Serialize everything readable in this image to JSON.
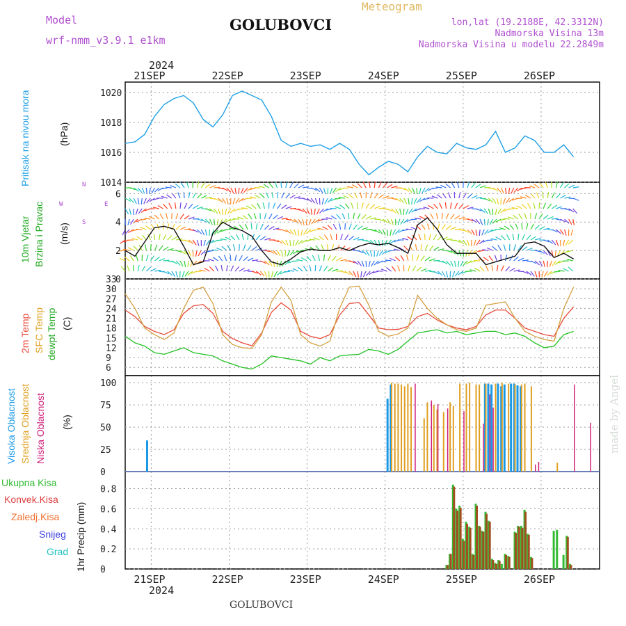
{
  "header": {
    "model_label": "Model",
    "model_name": "wrf-nmm_v3.9.1 e1km",
    "title": "GOLUBOVCI",
    "meteogram": "Meteogram",
    "coords": "lon,lat (19.2188E, 42.3312N)",
    "elevation": "Nadmorska Visina 13m",
    "model_elevation": "Nadmorska Visina u modelu 22.2849m",
    "year_top": "2024",
    "year_bottom": "2024",
    "footer_title": "GOLUBOVCI",
    "credit": "made by Angel"
  },
  "day_labels": [
    "21SEP",
    "22SEP",
    "23SEP",
    "24SEP",
    "25SEP",
    "26SEP"
  ],
  "panel_labels": {
    "pressure": [
      "Pritisak na nivou mora"
    ],
    "pressure_unit": "(hPa)",
    "wind": [
      "10m Vjetar",
      "Brzina i Pravac"
    ],
    "wind_unit": "(m/s)",
    "wind_compass": {
      "n": "N",
      "s": "S",
      "w": "W",
      "e": "E"
    },
    "temp": [
      "2m Temp",
      "SFC Temp",
      "dewpt Temp"
    ],
    "temp_unit": "(C)",
    "cloud": [
      "Visoka Oblacnost",
      "Srednja Oblacnost",
      "Niska Oblacnost"
    ],
    "cloud_unit": "(%)",
    "precip": [
      "Ukupna Kisa",
      "Konvek.Kisa",
      "Zaledj.Kisa",
      "Snijeg",
      "Grad"
    ],
    "precip_unit": "1hr Precip (mm)"
  },
  "colors": {
    "pressure": "#1ea0e6",
    "temp2m": "#e84a3a",
    "sfc": "#d4a040",
    "dewpt": "#22c022",
    "high_cloud": "#1a9ae6",
    "mid_cloud": "#e0a020",
    "low_cloud": "#d0207a",
    "total_precip": "#33bb33",
    "conv_precip": "#a05020",
    "freezing": "#f07030",
    "snow": "#4040e0",
    "hail": "#20c0c0",
    "header_purple": "#b050d0",
    "header_gold": "#e0b860"
  },
  "chart_data": [
    {
      "type": "line",
      "title": "Pritisak na nivou mora",
      "ylabel": "(hPa)",
      "ylim": [
        1014,
        1020.7
      ],
      "yticks": [
        1014,
        1016,
        1018,
        1020
      ],
      "x_hours": [
        0,
        3,
        6,
        9,
        12,
        15,
        18,
        21,
        24,
        27,
        30,
        33,
        36,
        39,
        42,
        45,
        48,
        51,
        54,
        57,
        60,
        63,
        66,
        69,
        72,
        75,
        78,
        81,
        84,
        87,
        90,
        93,
        96,
        99,
        102,
        105,
        108,
        111,
        114,
        117,
        120,
        123,
        126,
        129,
        132,
        135,
        138
      ],
      "values": [
        1016.6,
        1016.7,
        1017.2,
        1018.4,
        1019.2,
        1019.6,
        1019.8,
        1019.3,
        1018.2,
        1017.7,
        1018.5,
        1019.8,
        1020.1,
        1019.8,
        1019.5,
        1018.4,
        1016.8,
        1016.4,
        1016.6,
        1016.4,
        1016.5,
        1016.2,
        1016.6,
        1016.2,
        1015.2,
        1014.5,
        1015.0,
        1015.4,
        1015.2,
        1014.7,
        1015.7,
        1016.4,
        1016.0,
        1015.9,
        1016.6,
        1016.3,
        1016.2,
        1016.5,
        1017.4,
        1016.0,
        1016.3,
        1017.1,
        1016.8,
        1016.0,
        1016.0,
        1016.5,
        1015.7
      ]
    },
    {
      "type": "line",
      "title": "10m Vjetar Brzina i Pravac",
      "ylabel": "(m/s)",
      "ylim": [
        0,
        6.8
      ],
      "yticks": [
        0,
        2,
        4,
        6
      ],
      "x_hours": [
        0,
        3,
        6,
        9,
        12,
        15,
        18,
        21,
        24,
        27,
        30,
        33,
        36,
        39,
        42,
        45,
        48,
        51,
        54,
        57,
        60,
        63,
        66,
        69,
        72,
        75,
        78,
        81,
        84,
        87,
        90,
        93,
        96,
        99,
        102,
        105,
        108,
        111,
        114,
        117,
        120,
        123,
        126,
        129,
        132,
        135,
        138
      ],
      "values": [
        2.0,
        1.6,
        2.6,
        3.6,
        3.7,
        3.5,
        2.3,
        1.0,
        1.2,
        3.2,
        4.0,
        3.6,
        3.4,
        3.0,
        2.0,
        1.2,
        1.0,
        1.4,
        1.9,
        2.1,
        2.0,
        2.0,
        2.2,
        2.0,
        2.3,
        2.5,
        2.4,
        2.5,
        2.2,
        1.8,
        3.8,
        4.3,
        3.5,
        2.4,
        1.8,
        1.8,
        1.8,
        1.0,
        1.2,
        1.4,
        1.6,
        2.5,
        2.6,
        2.3,
        1.5,
        1.8,
        1.4
      ]
    },
    {
      "type": "line",
      "title": "2m Temp / SFC Temp / dewpt Temp",
      "ylabel": "(C)",
      "ylim": [
        3.5,
        33
      ],
      "yticks": [
        6,
        9,
        12,
        15,
        18,
        21,
        24,
        27,
        30,
        33
      ],
      "x_hours": [
        0,
        3,
        6,
        9,
        12,
        15,
        18,
        21,
        24,
        27,
        30,
        33,
        36,
        39,
        42,
        45,
        48,
        51,
        54,
        57,
        60,
        63,
        66,
        69,
        72,
        75,
        78,
        81,
        84,
        87,
        90,
        93,
        96,
        99,
        102,
        105,
        108,
        111,
        114,
        117,
        120,
        123,
        126,
        129,
        132,
        135,
        138
      ],
      "series": [
        {
          "name": "2m Temp",
          "values": [
            23.5,
            21.5,
            18.5,
            17.0,
            16.0,
            17.5,
            22.5,
            24.8,
            25.2,
            22.5,
            17.0,
            14.8,
            13.5,
            12.6,
            16.5,
            22.8,
            25.7,
            23.5,
            17.0,
            15.5,
            14.8,
            16.0,
            22.0,
            25.5,
            25.8,
            22.0,
            18.0,
            17.5,
            17.6,
            18.5,
            21.5,
            22.5,
            20.5,
            19.0,
            18.0,
            17.5,
            18.5,
            22.0,
            23.5,
            23.5,
            21.0,
            18.0,
            17.0,
            16.0,
            15.5,
            21.0,
            24.5
          ]
        },
        {
          "name": "SFC Temp",
          "values": [
            28.5,
            24.0,
            18.0,
            16.0,
            14.5,
            16.5,
            24.0,
            29.5,
            30.5,
            25.5,
            16.0,
            13.0,
            12.0,
            11.8,
            16.0,
            26.0,
            30.5,
            26.5,
            16.0,
            13.5,
            12.5,
            14.0,
            24.0,
            30.5,
            30.8,
            25.0,
            17.0,
            15.5,
            16.2,
            18.0,
            28.0,
            24.0,
            21.0,
            19.0,
            17.5,
            17.0,
            18.0,
            25.0,
            25.5,
            26.0,
            21.0,
            17.0,
            15.5,
            14.5,
            14.0,
            24.0,
            30.5
          ]
        },
        {
          "name": "dewpt Temp",
          "values": [
            15.5,
            13.5,
            12.5,
            10.5,
            10.0,
            11.0,
            12.0,
            10.5,
            10.0,
            9.5,
            8.0,
            7.0,
            6.0,
            5.5,
            7.0,
            9.5,
            9.0,
            8.5,
            8.0,
            7.0,
            9.0,
            8.0,
            9.5,
            9.8,
            10.0,
            11.5,
            11.0,
            10.0,
            11.5,
            14.0,
            16.5,
            17.0,
            17.5,
            16.5,
            17.0,
            16.0,
            16.5,
            17.0,
            17.0,
            16.0,
            16.5,
            15.5,
            13.5,
            12.0,
            12.5,
            16.0,
            17.0
          ]
        }
      ]
    },
    {
      "type": "bar",
      "title": "Visoka / Srednja / Niska Oblacnost",
      "ylabel": "(%)",
      "ylim": [
        0,
        100
      ],
      "yticks": [
        0,
        25,
        50,
        75,
        100
      ],
      "series": [
        {
          "name": "Visoka Oblacnost",
          "bars": [
            [
              7,
              35
            ],
            [
              81,
              82
            ],
            [
              82,
              98
            ],
            [
              111,
              99
            ],
            [
              112,
              99
            ],
            [
              113,
              98
            ],
            [
              115,
              99
            ],
            [
              116,
              96
            ],
            [
              117,
              98
            ],
            [
              119,
              99
            ],
            [
              120,
              99
            ],
            [
              121,
              97
            ],
            [
              122,
              96
            ]
          ]
        },
        {
          "name": "Srednja Oblacnost",
          "bars": [
            [
              82,
              100
            ],
            [
              83,
              99
            ],
            [
              84,
              99
            ],
            [
              85,
              98
            ],
            [
              86,
              96
            ],
            [
              87,
              99
            ],
            [
              88,
              95
            ],
            [
              92,
              60
            ],
            [
              93,
              78
            ],
            [
              95,
              75
            ],
            [
              96,
              70
            ],
            [
              98,
              67
            ],
            [
              100,
              78
            ],
            [
              101,
              74
            ],
            [
              103,
              99
            ],
            [
              105,
              99
            ],
            [
              106,
              100
            ],
            [
              108,
              98
            ],
            [
              109,
              98
            ],
            [
              111,
              99
            ],
            [
              114,
              99
            ],
            [
              116,
              100
            ],
            [
              118,
              99
            ],
            [
              120,
              98
            ],
            [
              122,
              98
            ],
            [
              123,
              99
            ],
            [
              125,
              96
            ],
            [
              133,
              10
            ]
          ]
        },
        {
          "name": "Niska Oblacnost",
          "bars": [
            [
              89,
              99
            ],
            [
              94,
              80
            ],
            [
              96,
              76
            ],
            [
              99,
              71
            ],
            [
              104,
              68
            ],
            [
              110,
              54
            ],
            [
              112,
              87
            ],
            [
              113,
              72
            ],
            [
              126,
              8
            ],
            [
              127,
              11
            ],
            [
              138,
              98
            ],
            [
              143,
              55
            ]
          ]
        }
      ]
    },
    {
      "type": "bar",
      "title": "1hr Precip",
      "ylabel": "1hr Precip (mm)",
      "ylim": [
        0,
        0.97
      ],
      "yticks": [
        0,
        0.2,
        0.4,
        0.6,
        0.8
      ],
      "series": [
        {
          "name": "Ukupna Kisa",
          "bars": [
            [
              99,
              0.04
            ],
            [
              100,
              0.15
            ],
            [
              101,
              0.84
            ],
            [
              102,
              0.6
            ],
            [
              103,
              0.63
            ],
            [
              104,
              0.3
            ],
            [
              105,
              0.47
            ],
            [
              106,
              0.42
            ],
            [
              107,
              0.15
            ],
            [
              108,
              0.65
            ],
            [
              109,
              0.43
            ],
            [
              110,
              0.38
            ],
            [
              111,
              0.57
            ],
            [
              112,
              0.48
            ],
            [
              113,
              0.1
            ],
            [
              114,
              0.06
            ],
            [
              115,
              0.09
            ],
            [
              116,
              0.05
            ],
            [
              117,
              0.15
            ],
            [
              118,
              0.13
            ],
            [
              120,
              0.37
            ],
            [
              121,
              0.43
            ],
            [
              122,
              0.43
            ],
            [
              123,
              0.59
            ],
            [
              124,
              0.35
            ],
            [
              125,
              0.12
            ],
            [
              132,
              0.38
            ],
            [
              133,
              0.39
            ],
            [
              135,
              0.14
            ],
            [
              136,
              0.33
            ],
            [
              137,
              0.05
            ]
          ]
        },
        {
          "name": "Konvek.Kisa",
          "bars": [
            [
              99,
              0.04
            ],
            [
              100,
              0.15
            ],
            [
              101,
              0.82
            ],
            [
              102,
              0.58
            ],
            [
              103,
              0.61
            ],
            [
              104,
              0.28
            ],
            [
              105,
              0.45
            ],
            [
              106,
              0.41
            ],
            [
              107,
              0.14
            ],
            [
              108,
              0.63
            ],
            [
              109,
              0.42
            ],
            [
              110,
              0.37
            ],
            [
              111,
              0.55
            ],
            [
              112,
              0.47
            ],
            [
              113,
              0.09
            ],
            [
              114,
              0.05
            ],
            [
              115,
              0.08
            ],
            [
              117,
              0.14
            ],
            [
              118,
              0.12
            ],
            [
              120,
              0.36
            ],
            [
              121,
              0.42
            ],
            [
              122,
              0.41
            ],
            [
              123,
              0.57
            ],
            [
              124,
              0.34
            ],
            [
              125,
              0.11
            ],
            [
              136,
              0.32
            ],
            [
              137,
              0.04
            ]
          ]
        }
      ]
    }
  ]
}
